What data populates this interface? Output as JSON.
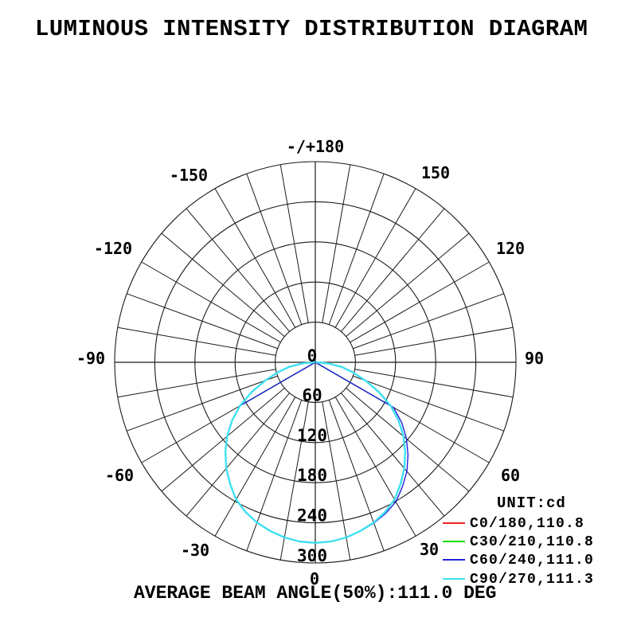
{
  "title": "LUMINOUS INTENSITY DISTRIBUTION DIAGRAM",
  "caption": "AVERAGE BEAM ANGLE(50%):111.0 DEG",
  "legend": {
    "unit_label": "UNIT:cd",
    "entries": [
      {
        "label": "C0/180,110.8",
        "color": "#ee2222"
      },
      {
        "label": "C30/210,110.8",
        "color": "#00dd00"
      },
      {
        "label": "C60/240,111.0",
        "color": "#2222dd"
      },
      {
        "label": "C90/270,111.3",
        "color": "#3fe0f2"
      }
    ]
  },
  "chart_data": {
    "type": "polar",
    "title": "LUMINOUS INTENSITY DISTRIBUTION DIAGRAM",
    "unit": "cd",
    "orientation": "0 degrees at bottom (nadir), +/-180 at top",
    "average_beam_angle_50pct_deg": 111.0,
    "ring_values": [
      60,
      120,
      180,
      240,
      300
    ],
    "center_label": "0",
    "max_radius_value": 300,
    "spoke_step_deg": 10,
    "angle_labels": [
      "-/+180",
      "-150",
      "150",
      "-120",
      "120",
      "-90",
      "90",
      "-60",
      "60",
      "-30",
      "30",
      "0"
    ],
    "grid_color": "#1a1a1a",
    "series": [
      {
        "name": "C0/180",
        "beam_angle_deg": 110.8,
        "color": "#ee2222",
        "width": 1.4,
        "angles": [
          -90,
          -60,
          -55,
          -50,
          -45,
          -40,
          -35,
          -30,
          -25,
          -20,
          -15,
          -10,
          -5,
          0,
          5,
          10,
          15,
          20,
          25,
          30,
          35,
          40,
          45,
          50,
          55,
          60,
          90
        ],
        "intensity": [
          0,
          130,
          152,
          172,
          190,
          207,
          222,
          237,
          247,
          255,
          261,
          266,
          269,
          270,
          269,
          266,
          261,
          255,
          247,
          237,
          222,
          207,
          190,
          172,
          152,
          130,
          0
        ]
      },
      {
        "name": "C30/210",
        "beam_angle_deg": 110.8,
        "color": "#00dd00",
        "width": 1.4,
        "angles": [
          -90,
          -60,
          -55,
          -50,
          -45,
          -40,
          -35,
          -30,
          -25,
          -20,
          -15,
          -10,
          -5,
          0,
          5,
          10,
          15,
          20,
          25,
          30,
          35,
          40,
          45,
          50,
          55,
          60,
          90
        ],
        "intensity": [
          0,
          130,
          152,
          172,
          190,
          207,
          222,
          237,
          247,
          255,
          261,
          266,
          269,
          270,
          269,
          266,
          261,
          255,
          247,
          237,
          222,
          207,
          190,
          172,
          152,
          130,
          0
        ]
      },
      {
        "name": "C60/240",
        "beam_angle_deg": 111.0,
        "color": "#2222dd",
        "width": 1.4,
        "angles": [
          -90,
          -60,
          -55,
          -50,
          -45,
          -40,
          -35,
          -30,
          -25,
          -20,
          -15,
          -10,
          -5,
          0,
          5,
          10,
          15,
          20,
          25,
          30,
          35,
          40,
          45,
          50,
          55,
          60,
          90
        ],
        "intensity": [
          0,
          130,
          152,
          172,
          190,
          207,
          222,
          237,
          247,
          255,
          261,
          266,
          269,
          270,
          269,
          266,
          261,
          256,
          249,
          241,
          227,
          213,
          196,
          178,
          158,
          135,
          0
        ]
      },
      {
        "name": "C90/270",
        "beam_angle_deg": 111.3,
        "color": "#3fe0f2",
        "width": 2.4,
        "angles": [
          -90,
          -85,
          -80,
          -75,
          -70,
          -65,
          -60,
          -55,
          -50,
          -45,
          -40,
          -35,
          -30,
          -25,
          -20,
          -15,
          -10,
          -5,
          0,
          5,
          10,
          15,
          20,
          25,
          30,
          35,
          40,
          45,
          50,
          55,
          60,
          65,
          70,
          75,
          80,
          85,
          90
        ],
        "intensity": [
          2,
          20,
          40,
          58,
          80,
          105,
          130,
          152,
          172,
          190,
          207,
          222,
          237,
          247,
          255,
          261,
          266,
          269,
          270,
          269,
          266,
          261,
          255,
          247,
          237,
          222,
          207,
          190,
          172,
          152,
          130,
          105,
          80,
          58,
          40,
          20,
          2
        ]
      }
    ]
  }
}
